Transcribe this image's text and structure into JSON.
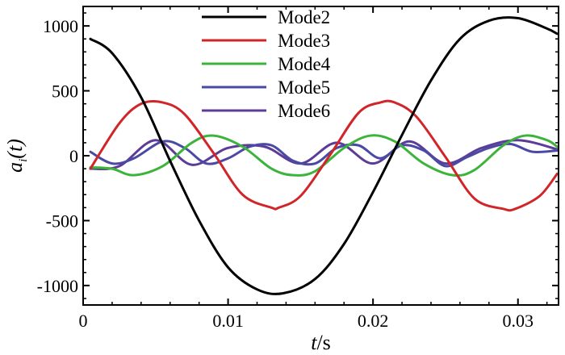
{
  "chart_data": {
    "type": "line",
    "title": "",
    "xlabel": {
      "main": "t",
      "unit": "/s"
    },
    "ylabel": {
      "main": "a",
      "sub": "i",
      "arg": "(t)"
    },
    "xlim": [
      0,
      0.0328
    ],
    "ylim": [
      -1150,
      1150
    ],
    "x_ticks": [
      0,
      0.01,
      0.02,
      0.03
    ],
    "x_tick_labels": [
      "0",
      "0.01",
      "0.02",
      "0.03"
    ],
    "y_ticks": [
      -1000,
      -500,
      0,
      500,
      1000
    ],
    "y_tick_labels": [
      "-1000",
      "-500",
      "0",
      "500",
      "1000"
    ],
    "grid": false,
    "legend_position": "top-center",
    "series": [
      {
        "name": "Mode2",
        "color": "#000000",
        "x": [
          0.0005,
          0.002,
          0.004,
          0.006,
          0.008,
          0.01,
          0.012,
          0.0138,
          0.016,
          0.018,
          0.02,
          0.022,
          0.024,
          0.026,
          0.028,
          0.03,
          0.032,
          0.0327
        ],
        "y": [
          900,
          790,
          450,
          -40,
          -500,
          -860,
          -1030,
          -1060,
          -950,
          -680,
          -280,
          160,
          580,
          900,
          1040,
          1060,
          980,
          940
        ]
      },
      {
        "name": "Mode3",
        "color": "#d0262a",
        "x": [
          0.0005,
          0.0025,
          0.004,
          0.0055,
          0.007,
          0.009,
          0.011,
          0.013,
          0.0135,
          0.015,
          0.017,
          0.019,
          0.0205,
          0.0215,
          0.023,
          0.025,
          0.027,
          0.029,
          0.0298,
          0.0315,
          0.0327
        ],
        "y": [
          -100,
          250,
          400,
          410,
          320,
          20,
          -300,
          -400,
          -400,
          -310,
          0,
          330,
          410,
          410,
          300,
          -10,
          -330,
          -410,
          -410,
          -310,
          -140
        ]
      },
      {
        "name": "Mode4",
        "color": "#3cb43c",
        "x": [
          0.0005,
          0.002,
          0.0035,
          0.0055,
          0.0075,
          0.009,
          0.011,
          0.013,
          0.0145,
          0.016,
          0.018,
          0.0198,
          0.0215,
          0.0235,
          0.0255,
          0.027,
          0.029,
          0.0305,
          0.032,
          0.0327
        ],
        "y": [
          -90,
          -100,
          -150,
          -80,
          100,
          155,
          70,
          -100,
          -150,
          -120,
          60,
          155,
          110,
          -60,
          -150,
          -110,
          80,
          155,
          120,
          70
        ]
      },
      {
        "name": "Mode5",
        "color": "#4a4aa4",
        "x": [
          0.0005,
          0.002,
          0.0035,
          0.0055,
          0.007,
          0.0085,
          0.01,
          0.0115,
          0.013,
          0.0145,
          0.016,
          0.0175,
          0.019,
          0.0205,
          0.022,
          0.0235,
          0.025,
          0.0265,
          0.028,
          0.0295,
          0.031,
          0.0327
        ],
        "y": [
          30,
          -60,
          -20,
          110,
          60,
          -60,
          -20,
          70,
          80,
          -40,
          -60,
          60,
          80,
          -20,
          80,
          40,
          -80,
          -10,
          60,
          90,
          30,
          40
        ]
      },
      {
        "name": "Mode6",
        "color": "#5c3c98",
        "x": [
          0.0005,
          0.0025,
          0.005,
          0.0075,
          0.01,
          0.0125,
          0.015,
          0.0175,
          0.02,
          0.0225,
          0.025,
          0.0275,
          0.03,
          0.0327
        ],
        "y": [
          -100,
          -80,
          120,
          -70,
          60,
          70,
          -60,
          100,
          -60,
          110,
          -60,
          60,
          120,
          50
        ]
      }
    ]
  }
}
